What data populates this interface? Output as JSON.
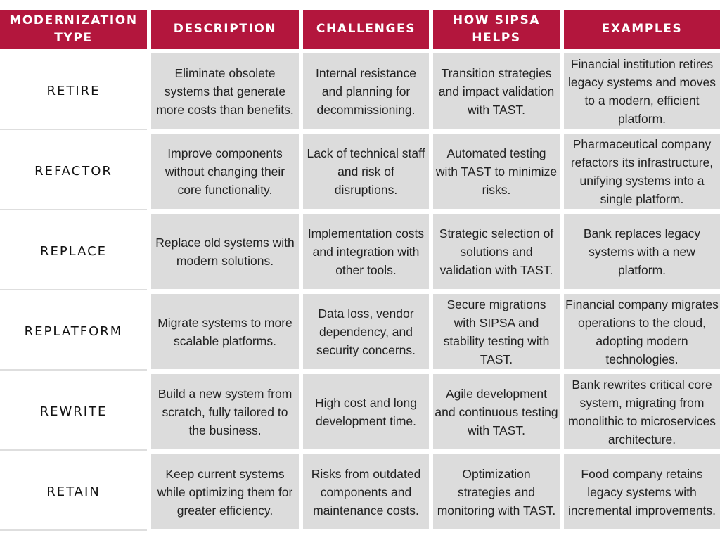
{
  "headers": {
    "type": "MODERNIZATION TYPE",
    "description": "DESCRIPTION",
    "challenges": "CHALLENGES",
    "how": "HOW SIPSA HELPS",
    "examples": "EXAMPLES"
  },
  "rows": [
    {
      "type": "RETIRE",
      "description": "Eliminate obsolete systems that generate more costs than benefits.",
      "challenges": "Internal resistance and planning for decommissioning.",
      "how": "Transition strategies and impact validation with TAST.",
      "examples": "Financial institution retires legacy systems and moves to a modern, efficient platform."
    },
    {
      "type": "REFACTOR",
      "description": "Improve components without changing their core functionality.",
      "challenges": "Lack of technical staff and risk of disruptions.",
      "how": "Automated testing with TAST to minimize risks.",
      "examples": "Pharmaceutical company refactors its infrastructure, unifying systems into a single platform."
    },
    {
      "type": "REPLACE",
      "description": "Replace old systems with modern solutions.",
      "challenges": "Implementation costs and integration with other tools.",
      "how": "Strategic selection of solutions and validation with TAST.",
      "examples": "Bank replaces legacy systems with a new platform."
    },
    {
      "type": "REPLATFORM",
      "description": "Migrate systems to more scalable platforms.",
      "challenges": "Data loss, vendor dependency, and security concerns.",
      "how": "Secure migrations with SIPSA and stability testing with TAST.",
      "examples": "Financial company migrates operations to the cloud, adopting modern technologies."
    },
    {
      "type": "REWRITE",
      "description": "Build a new system from scratch, fully tailored to the business.",
      "challenges": "High cost and long development time.",
      "how": "Agile development and continuous testing with TAST.",
      "examples": "Bank rewrites critical core system, migrating from monolithic to microservices architecture."
    },
    {
      "type": "RETAIN",
      "description": "Keep current systems while optimizing them for greater efficiency.",
      "challenges": "Risks from outdated components and maintenance costs.",
      "how": "Optimization strategies and monitoring with TAST.",
      "examples": "Food company retains legacy systems with incremental improvements."
    }
  ]
}
